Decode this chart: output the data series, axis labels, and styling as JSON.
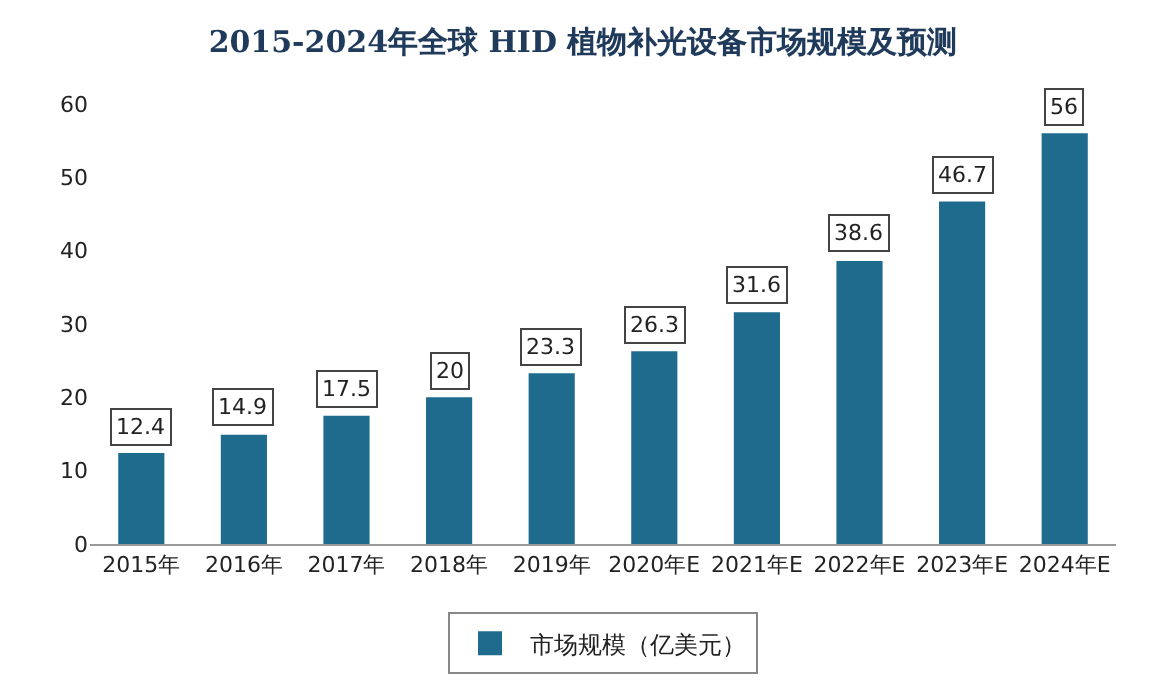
{
  "chart_data": {
    "type": "bar",
    "title": "2015-2024年全球 HID 植物补光设备市场规模及预测",
    "categories": [
      "2015年",
      "2016年",
      "2017年",
      "2018年",
      "2019年",
      "2020年E",
      "2021年E",
      "2022年E",
      "2023年E",
      "2024年E"
    ],
    "series": [
      {
        "name": "市场规模（亿美元）",
        "color": "#1f6b8e",
        "values": [
          12.4,
          14.9,
          17.5,
          20,
          23.3,
          26.3,
          31.6,
          38.6,
          46.7,
          56
        ]
      }
    ],
    "ylim": [
      0,
      60
    ],
    "yticks": [
      0,
      10,
      20,
      30,
      40,
      50,
      60
    ],
    "grid": false,
    "legend": "bottom",
    "data_labels": true
  }
}
